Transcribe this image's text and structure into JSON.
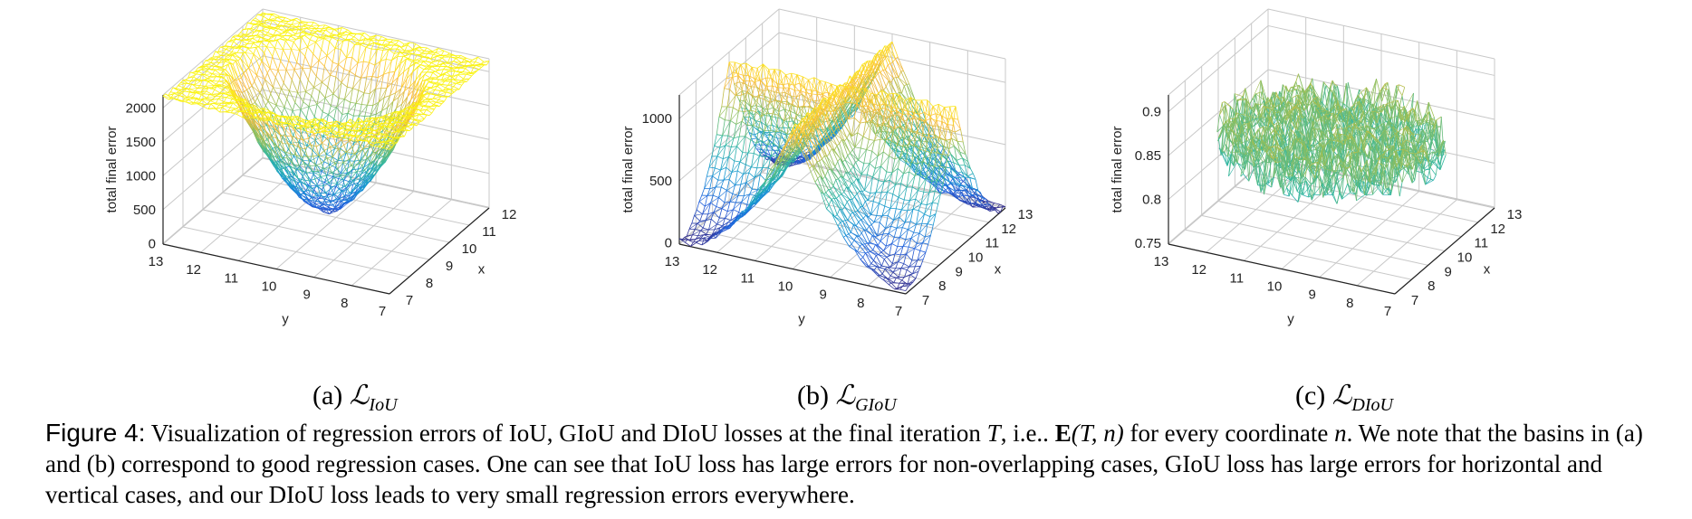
{
  "figure": {
    "label": "Figure 4:",
    "caption_parts": [
      "Visualization of regression errors of IoU, GIoU and DIoU losses at the final iteration ",
      "T",
      ", i.e.. ",
      "E",
      "(T, n)",
      " for every coordinate ",
      "n",
      ". We note that the basins in (a) and (b) correspond to good regression cases. One can see that IoU loss has large errors for non-overlapping cases, GIoU loss has large errors for horizontal and vertical cases, and our DIoU loss leads to very small regression errors everywhere."
    ]
  },
  "chart_data": [
    {
      "type": "surface",
      "subcaption": {
        "prefix": "(a) ",
        "symbol": "ℒ",
        "subscript": "IoU"
      },
      "zlabel": "total final error",
      "xlabel": "x",
      "ylabel": "y",
      "x_ticks": [
        "7",
        "8",
        "9",
        "10",
        "11",
        "12"
      ],
      "y_ticks": [
        "13",
        "12",
        "11",
        "10",
        "9",
        "8",
        "7"
      ],
      "z_ticks": [
        "0",
        "500",
        "1000",
        "1500",
        "2000"
      ],
      "zlim": [
        0,
        2000
      ],
      "shape": "basin_center_high_rim",
      "min_value": 200,
      "max_value": 2000,
      "colormap": "parula"
    },
    {
      "type": "surface",
      "subcaption": {
        "prefix": "(b) ",
        "symbol": "ℒ",
        "subscript": "GIoU"
      },
      "zlabel": "total final error",
      "xlabel": "x",
      "ylabel": "y",
      "x_ticks": [
        "7",
        "8",
        "9",
        "10",
        "11",
        "12",
        "13"
      ],
      "y_ticks": [
        "13",
        "12",
        "11",
        "10",
        "9",
        "8",
        "7"
      ],
      "z_ticks": [
        "0",
        "500",
        "1000"
      ],
      "zlim": [
        0,
        1100
      ],
      "shape": "saddle_high_axes",
      "min_value": 0,
      "max_value": 1100,
      "colormap": "parula"
    },
    {
      "type": "surface",
      "subcaption": {
        "prefix": "(c) ",
        "symbol": "ℒ",
        "subscript": "DIoU"
      },
      "zlabel": "total final error",
      "xlabel": "x",
      "ylabel": "y",
      "x_ticks": [
        "7",
        "8",
        "9",
        "10",
        "11",
        "12",
        "13"
      ],
      "y_ticks": [
        "13",
        "12",
        "11",
        "10",
        "9",
        "8",
        "7"
      ],
      "z_ticks": [
        "0.75",
        "0.8",
        "0.85",
        "0.9"
      ],
      "zlim": [
        0.74,
        0.9
      ],
      "shape": "noisy_flat_disk",
      "min_value": 0.75,
      "max_value": 0.9,
      "colormap": "parula"
    }
  ]
}
